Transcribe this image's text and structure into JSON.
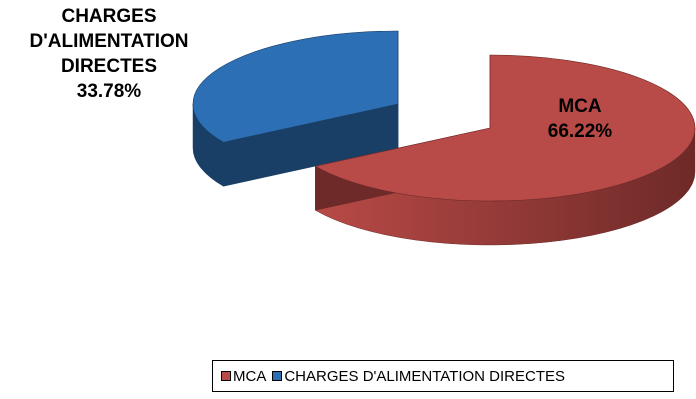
{
  "chart_data": {
    "type": "pie",
    "variant": "3d-exploded",
    "title": "",
    "slices": [
      {
        "name": "MCA",
        "value": 66.22,
        "label_lines": [
          "MCA",
          "66.22%"
        ],
        "color": "#b84a47",
        "side_color": "#6e2a28"
      },
      {
        "name": "CHARGES D'ALIMENTATION DIRECTES",
        "value": 33.78,
        "label_lines": [
          "CHARGES",
          "D'ALIMENTATION",
          "DIRECTES",
          "33.78%"
        ],
        "color": "#2d6fb5",
        "side_color": "#1a3f66"
      }
    ],
    "legend": {
      "placement": "bottom-right",
      "items": [
        "MCA",
        "CHARGES D'ALIMENTATION DIRECTES"
      ]
    }
  }
}
